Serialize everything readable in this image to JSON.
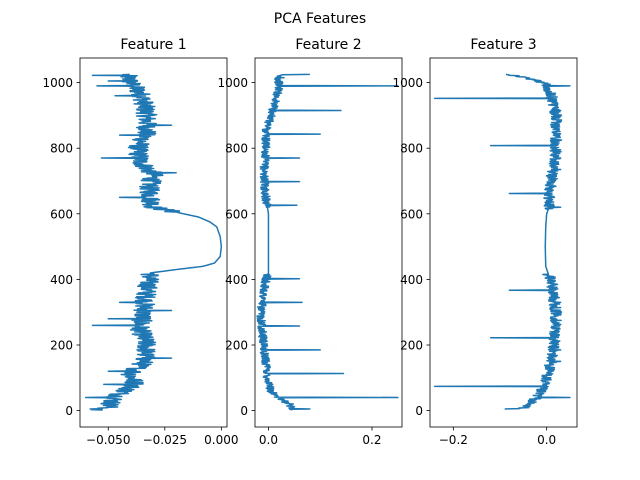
{
  "chart_data": {
    "type": "line",
    "title": "PCA Features",
    "line_color": "#1f77b4",
    "grid": false,
    "shared_y": {
      "ylim": [
        -50,
        1075
      ],
      "ticks": [
        0,
        200,
        400,
        600,
        800,
        1000
      ],
      "tick_labels": [
        "0",
        "200",
        "400",
        "600",
        "800",
        "1000"
      ]
    },
    "panels": [
      {
        "title": "Feature 1",
        "xlim": [
          -0.0625,
          0.0025
        ],
        "xticks": [
          -0.05,
          -0.025,
          0.0
        ],
        "xtick_labels": [
          "−0.050",
          "−0.025",
          "0.000"
        ],
        "profile": [
          [
            1025,
            -0.042
          ],
          [
            1000,
            -0.04
          ],
          [
            960,
            -0.035
          ],
          [
            900,
            -0.033
          ],
          [
            850,
            -0.033
          ],
          [
            800,
            -0.037
          ],
          [
            760,
            -0.036
          ],
          [
            720,
            -0.03
          ],
          [
            680,
            -0.032
          ],
          [
            640,
            -0.031
          ],
          [
            620,
            -0.03
          ],
          [
            605,
            -0.02
          ],
          [
            590,
            -0.01
          ],
          [
            575,
            -0.005
          ],
          [
            560,
            -0.002
          ],
          [
            530,
            -0.0005
          ],
          [
            500,
            0.0
          ],
          [
            470,
            -0.0005
          ],
          [
            450,
            -0.003
          ],
          [
            440,
            -0.008
          ],
          [
            430,
            -0.02
          ],
          [
            420,
            -0.031
          ],
          [
            400,
            -0.032
          ],
          [
            360,
            -0.033
          ],
          [
            320,
            -0.034
          ],
          [
            280,
            -0.035
          ],
          [
            250,
            -0.036
          ],
          [
            200,
            -0.033
          ],
          [
            150,
            -0.034
          ],
          [
            110,
            -0.04
          ],
          [
            80,
            -0.038
          ],
          [
            50,
            -0.045
          ],
          [
            30,
            -0.048
          ],
          [
            10,
            -0.05
          ],
          [
            2,
            -0.054
          ]
        ],
        "noisy_ranges": [
          [
            0,
            420
          ],
          [
            605,
            1025
          ]
        ],
        "noise_amplitude": 0.0045,
        "spikes": [
          [
            1022,
            -0.057
          ],
          [
            1005,
            -0.05
          ],
          [
            990,
            -0.055
          ],
          [
            960,
            -0.047
          ],
          [
            870,
            -0.022
          ],
          [
            840,
            -0.045
          ],
          [
            770,
            -0.053
          ],
          [
            725,
            -0.02
          ],
          [
            650,
            -0.045
          ],
          [
            330,
            -0.045
          ],
          [
            305,
            -0.022
          ],
          [
            280,
            -0.05
          ],
          [
            260,
            -0.057
          ],
          [
            160,
            -0.022
          ],
          [
            120,
            -0.05
          ],
          [
            80,
            -0.052
          ],
          [
            40,
            -0.06
          ],
          [
            20,
            -0.047
          ],
          [
            5,
            -0.058
          ]
        ]
      },
      {
        "title": "Feature 2",
        "xlim": [
          -0.026,
          0.258
        ],
        "xticks": [
          0.0,
          0.2
        ],
        "xtick_labels": [
          "0.0",
          "0.2"
        ],
        "profile": [
          [
            1025,
            0.02
          ],
          [
            980,
            0.02
          ],
          [
            900,
            0.005
          ],
          [
            850,
            -0.005
          ],
          [
            800,
            -0.005
          ],
          [
            750,
            -0.008
          ],
          [
            700,
            -0.008
          ],
          [
            650,
            -0.005
          ],
          [
            620,
            -0.002
          ],
          [
            600,
            0.0
          ],
          [
            560,
            0.0
          ],
          [
            500,
            0.0
          ],
          [
            440,
            0.0
          ],
          [
            420,
            0.0
          ],
          [
            400,
            -0.005
          ],
          [
            350,
            -0.01
          ],
          [
            300,
            -0.015
          ],
          [
            250,
            -0.012
          ],
          [
            200,
            -0.01
          ],
          [
            150,
            -0.005
          ],
          [
            100,
            -0.002
          ],
          [
            60,
            0.005
          ],
          [
            38,
            0.02
          ],
          [
            20,
            0.04
          ],
          [
            2,
            0.05
          ]
        ],
        "noisy_ranges": [
          [
            0,
            415
          ],
          [
            620,
            1025
          ]
        ],
        "noise_amplitude": 0.008,
        "spikes": [
          [
            1025,
            0.08
          ],
          [
            1015,
            0.03
          ],
          [
            990,
            0.25
          ],
          [
            915,
            0.14
          ],
          [
            843,
            0.1
          ],
          [
            770,
            0.06
          ],
          [
            698,
            0.06
          ],
          [
            626,
            0.055
          ],
          [
            402,
            0.06
          ],
          [
            330,
            0.065
          ],
          [
            258,
            0.06
          ],
          [
            185,
            0.1
          ],
          [
            113,
            0.145
          ],
          [
            40,
            0.25
          ],
          [
            5,
            0.08
          ]
        ]
      },
      {
        "title": "Feature 3",
        "xlim": [
          -0.25,
          0.065
        ],
        "xticks": [
          -0.2,
          0.0
        ],
        "xtick_labels": [
          "−0.2",
          "0.0"
        ],
        "profile": [
          [
            1025,
            -0.08
          ],
          [
            1010,
            -0.03
          ],
          [
            995,
            0.0
          ],
          [
            960,
            0.01
          ],
          [
            900,
            0.02
          ],
          [
            850,
            0.02
          ],
          [
            800,
            0.02
          ],
          [
            750,
            0.015
          ],
          [
            700,
            0.01
          ],
          [
            640,
            0.005
          ],
          [
            620,
            0.005
          ],
          [
            600,
            0.0
          ],
          [
            560,
            -0.002
          ],
          [
            500,
            -0.003
          ],
          [
            440,
            -0.002
          ],
          [
            410,
            0.005
          ],
          [
            400,
            0.01
          ],
          [
            350,
            0.015
          ],
          [
            300,
            0.02
          ],
          [
            250,
            0.02
          ],
          [
            200,
            0.015
          ],
          [
            150,
            0.01
          ],
          [
            100,
            0.0
          ],
          [
            70,
            -0.01
          ],
          [
            40,
            -0.02
          ],
          [
            20,
            -0.04
          ],
          [
            5,
            -0.05
          ]
        ],
        "noisy_ranges": [
          [
            0,
            415
          ],
          [
            615,
            1025
          ]
        ],
        "noise_amplitude": 0.012,
        "spikes": [
          [
            990,
            0.05
          ],
          [
            952,
            -0.24
          ],
          [
            915,
            0.03
          ],
          [
            880,
            0.03
          ],
          [
            808,
            -0.12
          ],
          [
            770,
            0.03
          ],
          [
            735,
            0.03
          ],
          [
            662,
            -0.08
          ],
          [
            620,
            0.03
          ],
          [
            367,
            -0.08
          ],
          [
            330,
            0.03
          ],
          [
            295,
            0.03
          ],
          [
            222,
            -0.12
          ],
          [
            185,
            0.03
          ],
          [
            150,
            0.03
          ],
          [
            74,
            -0.24
          ],
          [
            40,
            0.05
          ],
          [
            5,
            -0.09
          ]
        ]
      }
    ]
  }
}
